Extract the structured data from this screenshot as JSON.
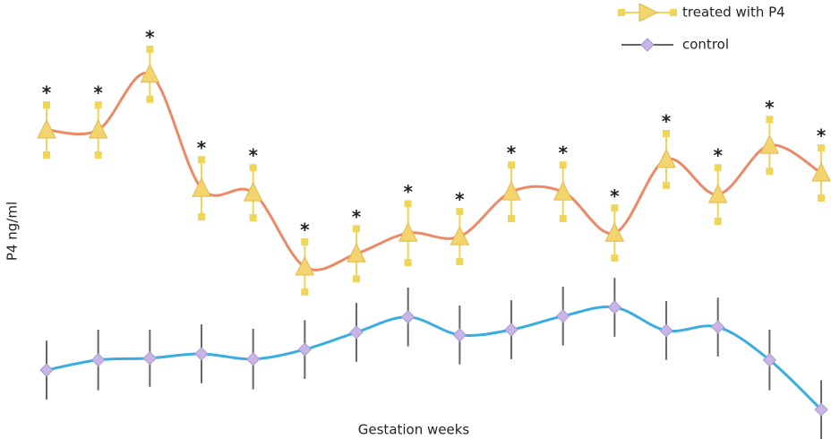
{
  "chart_data": {
    "type": "line",
    "x_label": "Gestation weeks",
    "y_label": "P4 ng/ml",
    "categories": [
      null,
      null,
      null,
      null,
      null,
      null,
      null,
      null,
      null,
      null,
      null,
      null,
      null,
      null,
      null,
      null
    ],
    "ylim": [
      0,
      100
    ],
    "legend": "top-right",
    "series": [
      {
        "name": "treated with P4",
        "color": "#ec8a68",
        "marker_color": "#f3d46e",
        "error_color": "#efd558",
        "marker": "triangle",
        "values": [
          70.4,
          70.4,
          83.1,
          57.1,
          56.1,
          39.2,
          42.2,
          46.9,
          46.1,
          56.3,
          56.3,
          46.9,
          63.7,
          55.7,
          66.9,
          60.6
        ],
        "errors": [
          5.7,
          5.7,
          5.7,
          6.5,
          5.7,
          5.7,
          5.7,
          6.7,
          5.7,
          6.1,
          6.1,
          5.7,
          5.9,
          6.1,
          5.9,
          5.7
        ],
        "annotations": [
          "*",
          "*",
          "*",
          "*",
          "*",
          "*",
          "*",
          "*",
          "*",
          "*",
          "*",
          "*",
          "*",
          "*",
          "*",
          "*"
        ]
      },
      {
        "name": "control",
        "color": "#3aade0",
        "marker_color": "#c8b4e6",
        "error_color": "#666666",
        "marker": "diamond",
        "values": [
          15.7,
          18.0,
          18.4,
          19.4,
          18.2,
          20.4,
          24.3,
          27.8,
          23.7,
          24.9,
          28.0,
          30.0,
          24.7,
          25.5,
          18.0,
          6.7
        ],
        "errors": [
          6.7,
          6.9,
          6.5,
          6.7,
          6.9,
          6.7,
          6.7,
          6.7,
          6.7,
          6.7,
          6.7,
          6.7,
          6.7,
          6.7,
          6.9,
          6.7
        ]
      }
    ]
  }
}
